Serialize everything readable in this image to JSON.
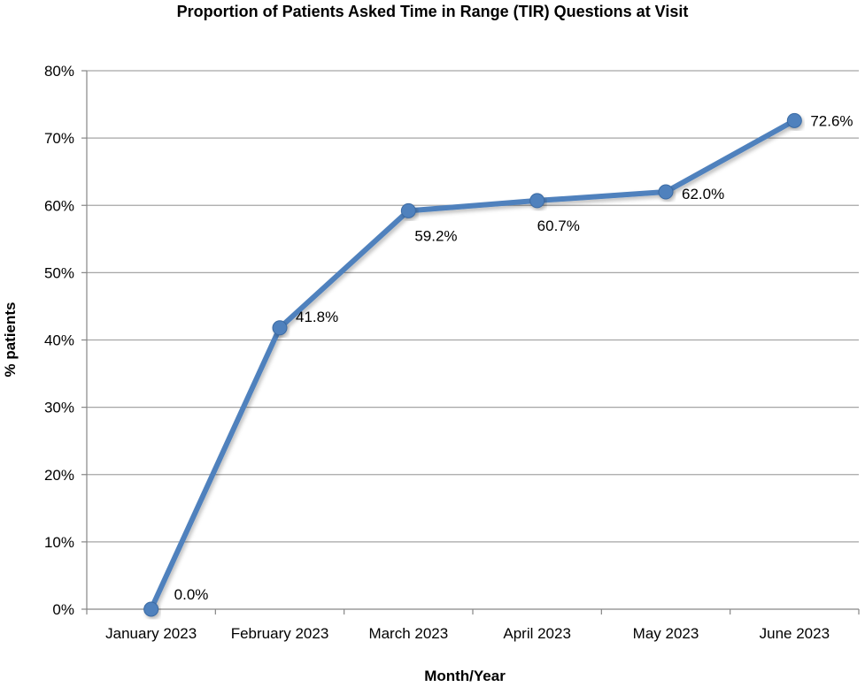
{
  "chart_data": {
    "type": "line",
    "title": "Proportion of Patients Asked Time in Range (TIR) Questions at Visit",
    "xlabel": "Month/Year",
    "ylabel": "% patients",
    "categories": [
      "January 2023",
      "February 2023",
      "March 2023",
      "April 2023",
      "May 2023",
      "June 2023"
    ],
    "series": [
      {
        "values": [
          0.0,
          41.8,
          59.2,
          60.7,
          62.0,
          72.6
        ],
        "data_labels": [
          "0.0%",
          "41.8%",
          "59.2%",
          "60.7%",
          "62.0%",
          "72.6%"
        ]
      }
    ],
    "ylim": [
      0,
      80
    ],
    "yticks": [
      0,
      10,
      20,
      30,
      40,
      50,
      60,
      70,
      80
    ],
    "ytick_labels": [
      "0%",
      "10%",
      "20%",
      "30%",
      "40%",
      "50%",
      "60%",
      "70%",
      "80%"
    ],
    "grid": "horizontal",
    "legend": "none",
    "colors": {
      "line": "#4F81BD",
      "grid": "#a6a6a6",
      "axis": "#868686"
    }
  }
}
